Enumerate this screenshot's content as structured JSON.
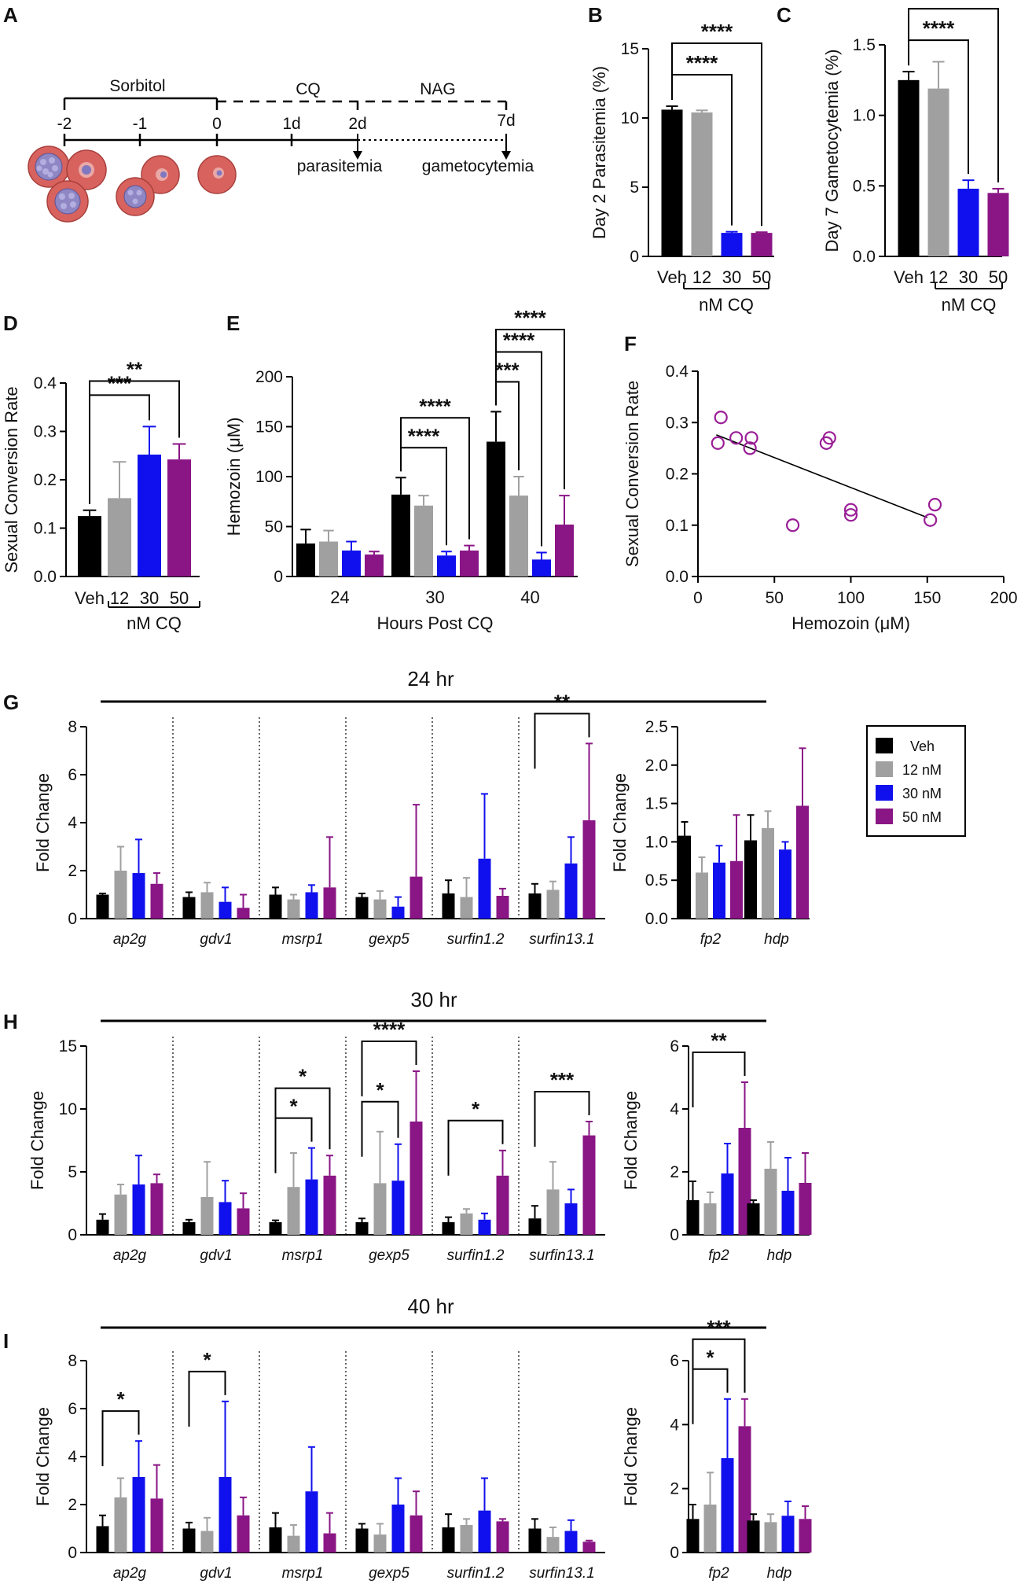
{
  "colors": {
    "veh": "#000000",
    "nm12": "#a0a0a0",
    "nm30": "#1010ee",
    "nm50": "#8a1585",
    "cell": "#d8625e",
    "cellEdge": "#a8403c",
    "scatter": "#9a1e96"
  },
  "panel_labels": [
    "A",
    "B",
    "C",
    "D",
    "E",
    "F",
    "G",
    "H",
    "I"
  ],
  "timeline": {
    "ticks": [
      "-2",
      "-1",
      "0",
      "1d",
      "2d",
      "7d"
    ],
    "treatments": [
      "Sorbitol",
      "CQ",
      "NAG"
    ],
    "readouts": [
      "parasitemia",
      "gametocytemia"
    ]
  },
  "legend": {
    "items": [
      "Veh",
      "12 nM",
      "30 nM",
      "50 nM"
    ]
  },
  "section_titles": [
    "24 hr",
    "30 hr",
    "40 hr"
  ],
  "chart_data": [
    {
      "id": "B",
      "type": "bar",
      "categories": [
        "Veh",
        "12",
        "30",
        "50"
      ],
      "group_label": "nM CQ",
      "values": [
        10.6,
        10.4,
        1.7,
        1.7
      ],
      "errors": [
        0.25,
        0.15,
        0.08,
        0.05
      ],
      "ylabel": "Day 2 Parasitemia (%)",
      "ylim": [
        0,
        15
      ],
      "yticks": [
        "0",
        "5",
        "10",
        "15"
      ],
      "sig": [
        {
          "from": 0,
          "to": 2,
          "label": "****"
        },
        {
          "from": 0,
          "to": 3,
          "label": "****"
        }
      ]
    },
    {
      "id": "C",
      "type": "bar",
      "categories": [
        "Veh",
        "12",
        "30",
        "50"
      ],
      "group_label": "nM CQ",
      "values": [
        1.25,
        1.19,
        0.48,
        0.45
      ],
      "errors": [
        0.06,
        0.19,
        0.06,
        0.03
      ],
      "ylabel": "Day 7 Gametocytemia (%)",
      "ylim": [
        0,
        1.5
      ],
      "yticks": [
        "0.0",
        "0.5",
        "1.0",
        "1.5"
      ],
      "sig": [
        {
          "from": 0,
          "to": 2,
          "label": "****"
        },
        {
          "from": 0,
          "to": 3,
          "label": "****"
        }
      ]
    },
    {
      "id": "D",
      "type": "bar",
      "categories": [
        "Veh",
        "12",
        "30",
        "50"
      ],
      "group_label": "nM CQ",
      "values": [
        0.125,
        0.162,
        0.252,
        0.242
      ],
      "errors": [
        0.012,
        0.075,
        0.058,
        0.032
      ],
      "ylabel": "Sexual Conversion Rate",
      "ylim": [
        0,
        0.4
      ],
      "yticks": [
        "0.0",
        "0.1",
        "0.2",
        "0.3",
        "0.4"
      ],
      "sig": [
        {
          "from": 0,
          "to": 2,
          "label": "***"
        },
        {
          "from": 0,
          "to": 3,
          "label": "**"
        }
      ]
    },
    {
      "id": "E",
      "type": "bar",
      "categories": [
        "24",
        "30",
        "40"
      ],
      "series": [
        {
          "name": "Veh",
          "values": [
            33,
            82,
            135
          ],
          "errors": [
            14,
            17,
            30
          ]
        },
        {
          "name": "12 nM",
          "values": [
            35,
            71,
            81
          ],
          "errors": [
            11,
            10,
            19
          ]
        },
        {
          "name": "30 nM",
          "values": [
            26,
            21,
            17
          ],
          "errors": [
            9,
            4,
            7
          ]
        },
        {
          "name": "50 nM",
          "values": [
            22,
            26,
            52
          ],
          "errors": [
            3,
            5,
            29
          ]
        }
      ],
      "ylabel": "Hemozoin (μM)",
      "xlabel": "Hours Post CQ",
      "ylim": [
        0,
        200
      ],
      "yticks": [
        "0",
        "50",
        "100",
        "150",
        "200"
      ],
      "sig": [
        {
          "cat": 1,
          "from": 0,
          "to": 2,
          "label": "****"
        },
        {
          "cat": 1,
          "from": 0,
          "to": 3,
          "label": "****"
        },
        {
          "cat": 2,
          "from": 0,
          "to": 1,
          "label": "***"
        },
        {
          "cat": 2,
          "from": 0,
          "to": 2,
          "label": "****"
        },
        {
          "cat": 2,
          "from": 0,
          "to": 3,
          "label": "****"
        }
      ]
    },
    {
      "id": "F",
      "type": "scatter",
      "x": [
        15,
        13,
        25,
        35,
        34,
        84,
        86,
        62,
        100,
        100,
        152,
        155
      ],
      "y": [
        0.31,
        0.26,
        0.27,
        0.27,
        0.25,
        0.26,
        0.27,
        0.1,
        0.13,
        0.12,
        0.11,
        0.14
      ],
      "fit": {
        "x": [
          12,
          150
        ],
        "y": [
          0.276,
          0.115
        ]
      },
      "xlabel": "Hemozoin (μM)",
      "ylabel": "Sexual Conversion Rate",
      "xlim": [
        0,
        200
      ],
      "ylim": [
        0,
        0.4
      ],
      "xticks": [
        "0",
        "50",
        "100",
        "150",
        "200"
      ],
      "yticks": [
        "0.0",
        "0.1",
        "0.2",
        "0.3",
        "0.4"
      ]
    },
    {
      "id": "G-left",
      "type": "bar",
      "ylabel": "Fold Change",
      "ylim": [
        0,
        8
      ],
      "yticks": [
        "0",
        "2",
        "4",
        "6",
        "8"
      ],
      "categories": [
        "ap2g",
        "gdv1",
        "msrp1",
        "gexp5",
        "surfin1.2",
        "surfin13.1"
      ],
      "series": [
        {
          "name": "Veh",
          "values": [
            1.0,
            0.9,
            1.0,
            0.9,
            1.05,
            1.05
          ],
          "errors": [
            0.05,
            0.2,
            0.3,
            0.15,
            0.55,
            0.4
          ]
        },
        {
          "name": "12 nM",
          "values": [
            2.0,
            1.1,
            0.8,
            0.8,
            0.9,
            1.2
          ],
          "errors": [
            1.0,
            0.4,
            0.2,
            0.35,
            0.8,
            0.35
          ]
        },
        {
          "name": "30 nM",
          "values": [
            1.9,
            0.7,
            1.1,
            0.5,
            2.5,
            2.3
          ],
          "errors": [
            1.4,
            0.6,
            0.3,
            0.4,
            2.7,
            1.1
          ]
        },
        {
          "name": "50 nM",
          "values": [
            1.45,
            0.45,
            1.3,
            1.75,
            0.95,
            4.1
          ],
          "errors": [
            0.45,
            0.55,
            2.1,
            3.0,
            0.3,
            3.2
          ]
        }
      ],
      "sig": [
        {
          "cat": 5,
          "from": 0,
          "to": 3,
          "label": "**"
        }
      ]
    },
    {
      "id": "G-right",
      "type": "bar",
      "ylabel": "Fold Change",
      "ylim": [
        0,
        2.5
      ],
      "yticks": [
        "0.0",
        "0.5",
        "1.0",
        "1.5",
        "2.0",
        "2.5"
      ],
      "categories": [
        "fp2",
        "hdp"
      ],
      "series": [
        {
          "name": "Veh",
          "values": [
            1.08,
            1.02
          ],
          "errors": [
            0.18,
            0.33
          ]
        },
        {
          "name": "12 nM",
          "values": [
            0.6,
            1.18
          ],
          "errors": [
            0.2,
            0.22
          ]
        },
        {
          "name": "30 nM",
          "values": [
            0.73,
            0.9
          ],
          "errors": [
            0.22,
            0.1
          ]
        },
        {
          "name": "50 nM",
          "values": [
            0.75,
            1.47
          ],
          "errors": [
            0.6,
            0.75
          ]
        }
      ],
      "sig": []
    },
    {
      "id": "H-left",
      "type": "bar",
      "ylabel": "Fold Change",
      "ylim": [
        0,
        15
      ],
      "yticks": [
        "0",
        "5",
        "10",
        "15"
      ],
      "categories": [
        "ap2g",
        "gdv1",
        "msrp1",
        "gexp5",
        "surfin1.2",
        "surfin13.1"
      ],
      "series": [
        {
          "name": "Veh",
          "values": [
            1.2,
            1.0,
            1.0,
            1.0,
            1.0,
            1.3
          ],
          "errors": [
            0.45,
            0.2,
            0.15,
            0.3,
            0.4,
            1.0
          ]
        },
        {
          "name": "12 nM",
          "values": [
            3.2,
            3.0,
            3.8,
            4.1,
            1.7,
            3.6
          ],
          "errors": [
            0.8,
            2.8,
            2.7,
            4.1,
            0.35,
            2.2
          ]
        },
        {
          "name": "30 nM",
          "values": [
            4.0,
            2.6,
            4.4,
            4.3,
            1.2,
            2.5
          ],
          "errors": [
            2.3,
            1.7,
            2.5,
            2.9,
            0.5,
            1.1
          ]
        },
        {
          "name": "50 nM",
          "values": [
            4.1,
            2.1,
            4.7,
            9.0,
            4.7,
            7.9
          ],
          "errors": [
            0.7,
            1.2,
            1.6,
            4.0,
            2.0,
            1.1
          ]
        }
      ],
      "sig": [
        {
          "cat": 2,
          "from": 0,
          "to": 2,
          "label": "*"
        },
        {
          "cat": 2,
          "from": 0,
          "to": 3,
          "label": "*"
        },
        {
          "cat": 3,
          "from": 0,
          "to": 2,
          "label": "*"
        },
        {
          "cat": 3,
          "from": 0,
          "to": 3,
          "label": "****"
        },
        {
          "cat": 4,
          "from": 0,
          "to": 3,
          "label": "*"
        },
        {
          "cat": 5,
          "from": 0,
          "to": 3,
          "label": "***"
        }
      ]
    },
    {
      "id": "H-right",
      "type": "bar",
      "ylabel": "Fold Change",
      "ylim": [
        0,
        6
      ],
      "yticks": [
        "0",
        "2",
        "4",
        "6"
      ],
      "categories": [
        "fp2",
        "hdp"
      ],
      "series": [
        {
          "name": "Veh",
          "values": [
            1.1,
            1.0
          ],
          "errors": [
            0.6,
            0.1
          ]
        },
        {
          "name": "12 nM",
          "values": [
            1.0,
            2.1
          ],
          "errors": [
            0.35,
            0.85
          ]
        },
        {
          "name": "30 nM",
          "values": [
            1.95,
            1.4
          ],
          "errors": [
            0.95,
            1.05
          ]
        },
        {
          "name": "50 nM",
          "values": [
            3.4,
            1.65
          ],
          "errors": [
            1.45,
            0.95
          ]
        }
      ],
      "sig": [
        {
          "cat": 0,
          "from": 0,
          "to": 3,
          "label": "**"
        }
      ]
    },
    {
      "id": "I-left",
      "type": "bar",
      "ylabel": "Fold Change",
      "ylim": [
        0,
        8
      ],
      "yticks": [
        "0",
        "2",
        "4",
        "6",
        "8"
      ],
      "categories": [
        "ap2g",
        "gdv1",
        "msrp1",
        "gexp5",
        "surfin1.2",
        "surfin13.1"
      ],
      "series": [
        {
          "name": "Veh",
          "values": [
            1.1,
            1.0,
            1.05,
            1.0,
            1.05,
            1.0
          ],
          "errors": [
            0.45,
            0.25,
            0.6,
            0.2,
            0.55,
            0.4
          ]
        },
        {
          "name": "12 nM",
          "values": [
            2.3,
            0.9,
            0.7,
            0.75,
            1.15,
            0.65
          ],
          "errors": [
            0.8,
            0.55,
            0.45,
            0.45,
            0.25,
            0.4
          ]
        },
        {
          "name": "30 nM",
          "values": [
            3.15,
            3.15,
            2.55,
            2.0,
            1.75,
            0.9
          ],
          "errors": [
            1.5,
            3.15,
            1.85,
            1.1,
            1.35,
            0.45
          ]
        },
        {
          "name": "50 nM",
          "values": [
            2.25,
            1.55,
            0.8,
            1.55,
            1.3,
            0.45
          ],
          "errors": [
            1.4,
            0.75,
            0.85,
            1.0,
            0.1,
            0.05
          ]
        }
      ],
      "sig": [
        {
          "cat": 0,
          "from": 0,
          "to": 2,
          "label": "*"
        },
        {
          "cat": 1,
          "from": 0,
          "to": 2,
          "label": "*"
        }
      ]
    },
    {
      "id": "I-right",
      "type": "bar",
      "ylabel": "Fold Change",
      "ylim": [
        0,
        6
      ],
      "yticks": [
        "0",
        "2",
        "4",
        "6"
      ],
      "categories": [
        "fp2",
        "hdp"
      ],
      "series": [
        {
          "name": "Veh",
          "values": [
            1.05,
            1.0
          ],
          "errors": [
            0.45,
            0.2
          ]
        },
        {
          "name": "12 nM",
          "values": [
            1.5,
            0.95
          ],
          "errors": [
            1.0,
            0.25
          ]
        },
        {
          "name": "30 nM",
          "values": [
            2.95,
            1.15
          ],
          "errors": [
            1.85,
            0.45
          ]
        },
        {
          "name": "50 nM",
          "values": [
            3.95,
            1.05
          ],
          "errors": [
            0.85,
            0.4
          ]
        }
      ],
      "sig": [
        {
          "cat": 0,
          "from": 0,
          "to": 2,
          "label": "*"
        },
        {
          "cat": 0,
          "from": 0,
          "to": 3,
          "label": "***"
        }
      ]
    }
  ]
}
